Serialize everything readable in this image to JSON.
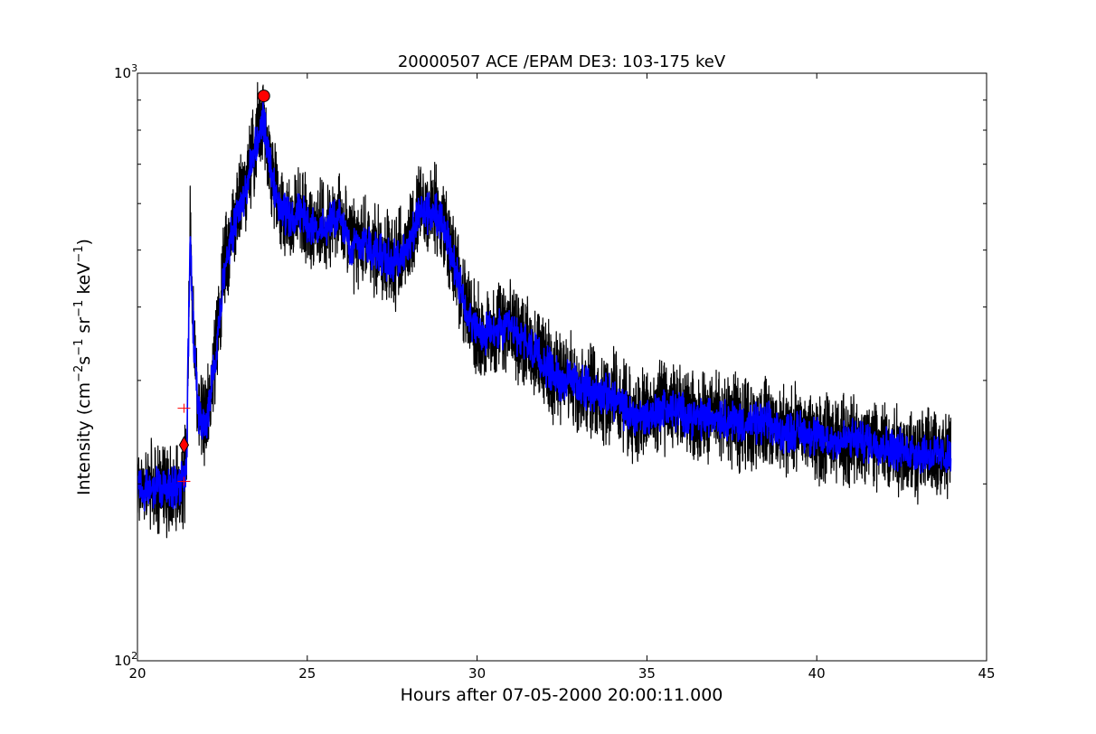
{
  "chart_data": {
    "type": "line",
    "title": "20000507 ACE /EPAM DE3: 103-175 keV",
    "xlabel": "Hours after 07-05-2000 20:00:11.000",
    "ylabel": {
      "prefix": "Intensity (cm",
      "exp1": "−2",
      "s": "s",
      "exp2": "−1",
      "sr": " sr",
      "exp3": "−1",
      "kev": " keV",
      "exp4": "−1",
      "suffix": ")"
    },
    "xlim": [
      20,
      45
    ],
    "ylim": [
      100,
      1000
    ],
    "yscale": "log",
    "xticks": [
      {
        "value": 20,
        "label": "20"
      },
      {
        "value": 25,
        "label": "25"
      },
      {
        "value": 30,
        "label": "30"
      },
      {
        "value": 35,
        "label": "35"
      },
      {
        "value": 40,
        "label": "40"
      },
      {
        "value": 45,
        "label": "45"
      }
    ],
    "yticks": [
      {
        "value": 100,
        "base": "10",
        "exp": "2"
      },
      {
        "value": 1000,
        "base": "10",
        "exp": "3"
      }
    ],
    "series": [
      {
        "role": "raw",
        "color": "#000000",
        "x": [
          20.0,
          20.5,
          21.0,
          21.25,
          21.38,
          21.45,
          21.55,
          21.65,
          21.8,
          22.0,
          22.3,
          22.6,
          22.9,
          23.2,
          23.5,
          23.7,
          23.9,
          24.2,
          24.5,
          24.8,
          25.1,
          25.5,
          25.9,
          26.3,
          26.7,
          27.1,
          27.5,
          27.9,
          28.3,
          28.7,
          29.0,
          29.3,
          29.6,
          29.9,
          30.1,
          30.5,
          31.0,
          31.5,
          32.0,
          32.5,
          33.0,
          33.5,
          34.0,
          34.5,
          35.0,
          35.5,
          36.0,
          36.5,
          37.0,
          37.5,
          38.0,
          38.5,
          39.0,
          39.5,
          40.0,
          40.5,
          41.0,
          41.5,
          42.0,
          42.5,
          43.0,
          43.5,
          43.95
        ],
        "y": [
          200,
          194,
          198,
          196,
          205,
          225,
          560,
          360,
          262,
          248,
          335,
          490,
          575,
          650,
          780,
          860,
          700,
          600,
          560,
          585,
          550,
          545,
          575,
          510,
          520,
          495,
          475,
          500,
          580,
          590,
          555,
          480,
          410,
          372,
          355,
          362,
          368,
          345,
          318,
          300,
          296,
          286,
          282,
          262,
          260,
          270,
          266,
          258,
          262,
          258,
          252,
          255,
          244,
          248,
          240,
          237,
          238,
          236,
          232,
          228,
          226,
          224,
          222
        ]
      },
      {
        "role": "smoothed",
        "color": "#0000ff",
        "x": [
          20.0,
          20.5,
          21.0,
          21.25,
          21.38,
          21.45,
          21.55,
          21.65,
          21.8,
          22.0,
          22.3,
          22.6,
          22.9,
          23.2,
          23.5,
          23.7,
          23.9,
          24.2,
          24.5,
          24.8,
          25.1,
          25.5,
          25.9,
          26.3,
          26.7,
          27.1,
          27.5,
          27.9,
          28.3,
          28.7,
          29.0,
          29.3,
          29.6,
          29.9,
          30.1,
          30.5,
          31.0,
          31.5,
          32.0,
          32.5,
          33.0,
          33.5,
          34.0,
          34.5,
          35.0,
          35.5,
          36.0,
          36.5,
          37.0,
          37.5,
          38.0,
          38.5,
          39.0,
          39.5,
          40.0,
          40.5,
          41.0,
          41.5,
          42.0,
          42.5,
          43.0,
          43.5,
          43.95
        ],
        "y": [
          198,
          196,
          197,
          197,
          204,
          222,
          540,
          355,
          262,
          250,
          332,
          482,
          565,
          640,
          760,
          830,
          690,
          595,
          560,
          580,
          548,
          543,
          570,
          510,
          518,
          495,
          476,
          498,
          575,
          586,
          552,
          478,
          410,
          372,
          356,
          362,
          366,
          344,
          318,
          300,
          296,
          286,
          281,
          262,
          260,
          269,
          265,
          258,
          261,
          257,
          252,
          254,
          244,
          247,
          240,
          237,
          238,
          236,
          232,
          228,
          226,
          224,
          222
        ]
      }
    ],
    "markers": [
      {
        "shape": "circle",
        "color": "#ff0000",
        "x": 23.72,
        "y": 915
      },
      {
        "shape": "diamond",
        "color": "#ff0000",
        "x": 21.37,
        "y": 233
      },
      {
        "shape": "plus",
        "color": "#ff0000",
        "x": 21.37,
        "y": 269
      },
      {
        "shape": "plus",
        "color": "#ff0000",
        "x": 21.37,
        "y": 202
      }
    ],
    "grid": false,
    "legend": "none"
  }
}
